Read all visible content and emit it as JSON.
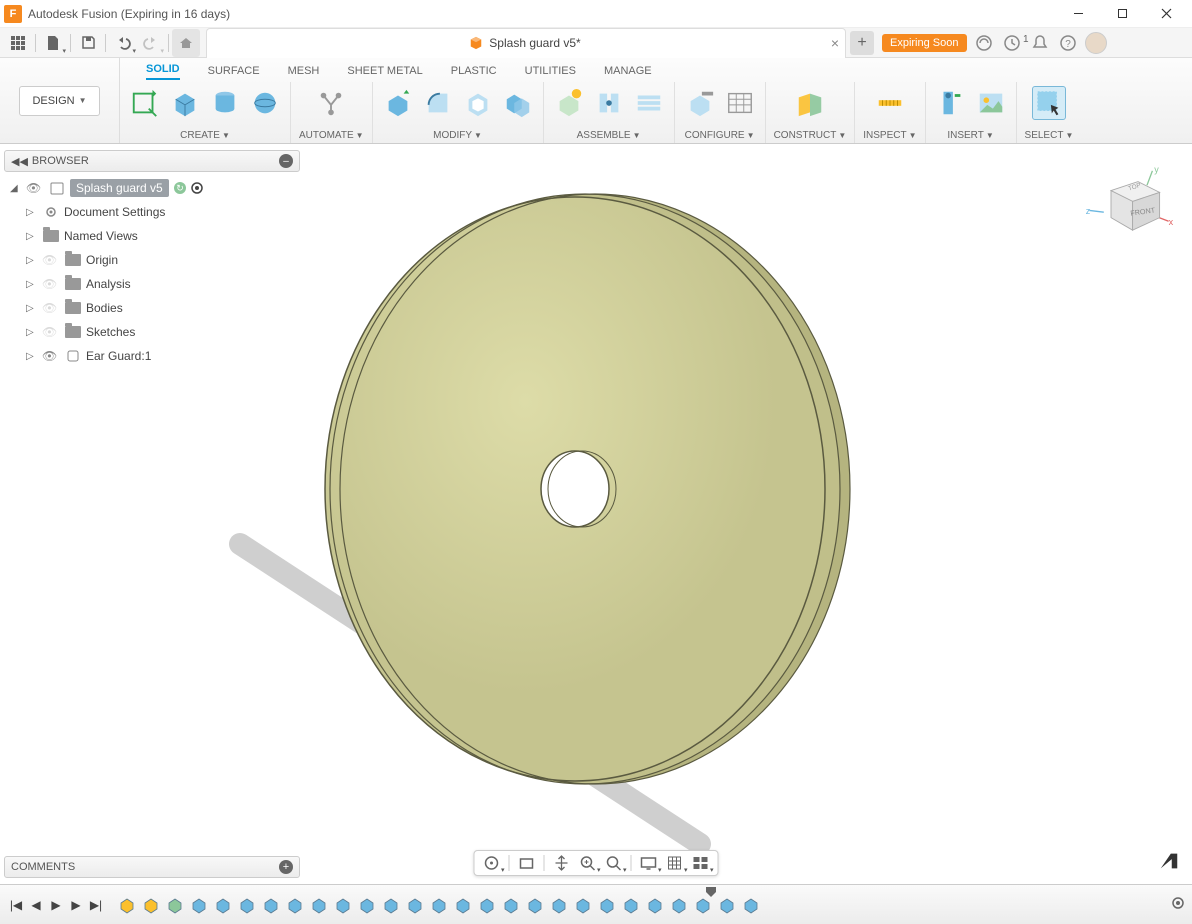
{
  "window": {
    "title": "Autodesk Fusion (Expiring in 16 days)"
  },
  "document": {
    "name": "Splash guard v5*"
  },
  "status": {
    "expiring_label": "Expiring Soon",
    "job_count": "1"
  },
  "workspace": {
    "label": "DESIGN"
  },
  "ribbon": {
    "tabs": [
      "SOLID",
      "SURFACE",
      "MESH",
      "SHEET METAL",
      "PLASTIC",
      "UTILITIES",
      "MANAGE"
    ],
    "active_tab": "SOLID",
    "groups": {
      "create": "CREATE",
      "automate": "AUTOMATE",
      "modify": "MODIFY",
      "assemble": "ASSEMBLE",
      "configure": "CONFIGURE",
      "construct": "CONSTRUCT",
      "inspect": "INSPECT",
      "insert": "INSERT",
      "select": "SELECT"
    }
  },
  "browser": {
    "title": "BROWSER",
    "root": "Splash guard v5",
    "items": [
      {
        "label": "Document Settings",
        "icon": "gear"
      },
      {
        "label": "Named Views",
        "icon": "folder"
      },
      {
        "label": "Origin",
        "icon": "folder",
        "dim": true
      },
      {
        "label": "Analysis",
        "icon": "folder",
        "dim": true
      },
      {
        "label": "Bodies",
        "icon": "folder",
        "dim": true
      },
      {
        "label": "Sketches",
        "icon": "folder",
        "dim": true
      },
      {
        "label": "Ear Guard:1",
        "icon": "component"
      }
    ]
  },
  "comments": {
    "title": "COMMENTS"
  },
  "viewcube": {
    "front": "FRONT",
    "top": "TOP",
    "axes": {
      "x": "x",
      "y": "y",
      "z": "z"
    }
  },
  "colors": {
    "accent": "#0696d7",
    "orange": "#f6891f",
    "cube_blue": "#6bb7e0",
    "cube_green": "#8cc79a",
    "model_face": "#cfcd9a",
    "model_edge": "#9a9870",
    "panel_bg": "#f0f0f0"
  },
  "timeline": {
    "item_count": 27
  }
}
